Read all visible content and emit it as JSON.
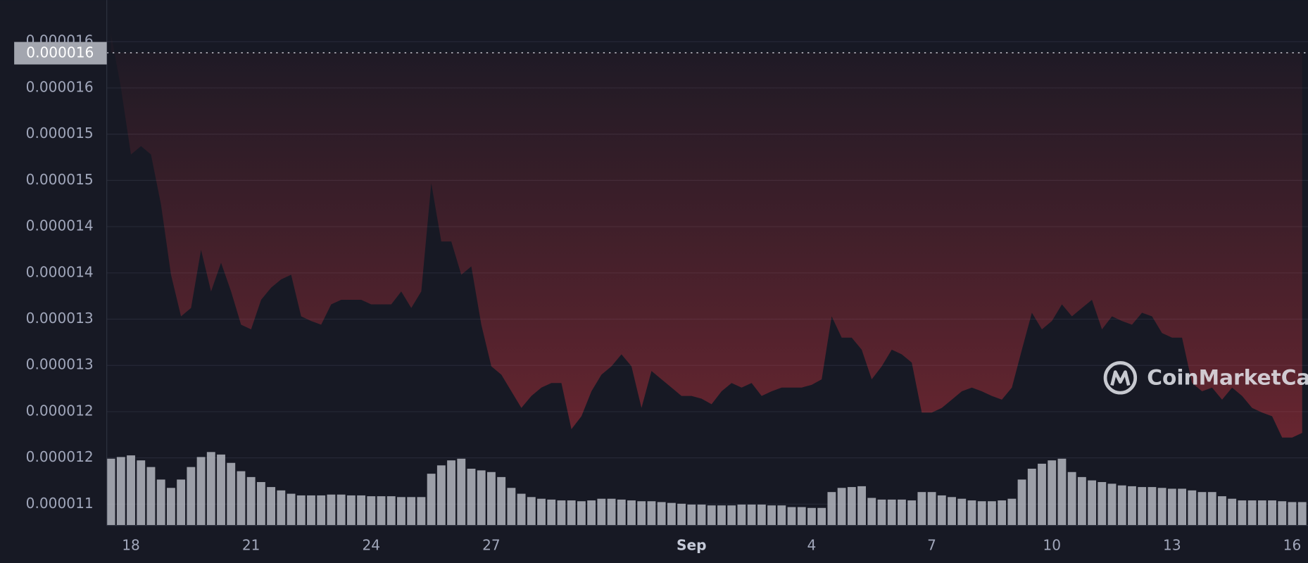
{
  "chart_data": {
    "type": "line",
    "categories": [
      null,
      null,
      "18",
      null,
      null,
      null,
      null,
      null,
      null,
      null,
      null,
      null,
      null,
      null,
      "21",
      null,
      null,
      null,
      null,
      null,
      null,
      null,
      null,
      null,
      null,
      null,
      "24",
      null,
      null,
      null,
      null,
      null,
      null,
      null,
      null,
      null,
      null,
      null,
      "27",
      null,
      null,
      null,
      null,
      null,
      null,
      null,
      null,
      null,
      null,
      null,
      null,
      null,
      null,
      null,
      null,
      null,
      null,
      null,
      "Sep",
      null,
      null,
      null,
      null,
      null,
      null,
      null,
      null,
      null,
      null,
      null,
      "4",
      null,
      null,
      null,
      null,
      null,
      null,
      null,
      null,
      null,
      null,
      null,
      "7",
      null,
      null,
      null,
      null,
      null,
      null,
      null,
      null,
      null,
      null,
      null,
      "10",
      null,
      null,
      null,
      null,
      null,
      null,
      null,
      null,
      null,
      null,
      null,
      "13",
      null,
      null,
      null,
      null,
      null,
      null,
      null,
      null,
      null,
      null,
      null,
      "16",
      null
    ],
    "values": [
      1.609e-05,
      1.55e-05,
      1.478e-05,
      1.487e-05,
      1.478e-05,
      1.424e-05,
      1.348e-05,
      1.303e-05,
      1.312e-05,
      1.375e-05,
      1.33e-05,
      1.361e-05,
      1.33e-05,
      1.294e-05,
      1.289e-05,
      1.321e-05,
      1.334e-05,
      1.343e-05,
      1.348e-05,
      1.303e-05,
      1.298e-05,
      1.294e-05,
      1.316e-05,
      1.321e-05,
      1.321e-05,
      1.321e-05,
      1.316e-05,
      1.316e-05,
      1.316e-05,
      1.33e-05,
      1.312e-05,
      1.33e-05,
      1.447e-05,
      1.384e-05,
      1.384e-05,
      1.348e-05,
      1.357e-05,
      1.294e-05,
      1.249e-05,
      1.24e-05,
      1.222e-05,
      1.204e-05,
      1.217e-05,
      1.226e-05,
      1.231e-05,
      1.231e-05,
      1.181e-05,
      1.195e-05,
      1.222e-05,
      1.24e-05,
      1.249e-05,
      1.262e-05,
      1.249e-05,
      1.204e-05,
      1.244e-05,
      1.235e-05,
      1.226e-05,
      1.217e-05,
      1.217e-05,
      1.214e-05,
      1.208e-05,
      1.222e-05,
      1.231e-05,
      1.226e-05,
      1.231e-05,
      1.217e-05,
      1.222e-05,
      1.226e-05,
      1.226e-05,
      1.226e-05,
      1.229e-05,
      1.235e-05,
      1.303e-05,
      1.28e-05,
      1.28e-05,
      1.267e-05,
      1.235e-05,
      1.249e-05,
      1.267e-05,
      1.262e-05,
      1.253e-05,
      1.199e-05,
      1.199e-05,
      1.204e-05,
      1.213e-05,
      1.222e-05,
      1.226e-05,
      1.222e-05,
      1.217e-05,
      1.213e-05,
      1.226e-05,
      1.267e-05,
      1.307e-05,
      1.289e-05,
      1.298e-05,
      1.316e-05,
      1.303e-05,
      1.312e-05,
      1.321e-05,
      1.289e-05,
      1.303e-05,
      1.298e-05,
      1.294e-05,
      1.307e-05,
      1.303e-05,
      1.285e-05,
      1.28e-05,
      1.28e-05,
      1.231e-05,
      1.222e-05,
      1.226e-05,
      1.213e-05,
      1.226e-05,
      1.217e-05,
      1.204e-05,
      1.199e-05,
      1.195e-05,
      1.172e-05,
      1.172e-05,
      1.177e-05
    ],
    "volume": [
      80,
      82,
      84,
      78,
      70,
      55,
      45,
      55,
      70,
      82,
      88,
      85,
      75,
      65,
      58,
      52,
      46,
      42,
      38,
      36,
      36,
      36,
      37,
      37,
      36,
      36,
      35,
      35,
      35,
      34,
      34,
      34,
      62,
      72,
      78,
      80,
      68,
      66,
      64,
      58,
      45,
      38,
      34,
      32,
      31,
      30,
      30,
      29,
      30,
      32,
      32,
      31,
      30,
      29,
      29,
      28,
      27,
      26,
      25,
      25,
      24,
      24,
      24,
      25,
      25,
      25,
      24,
      24,
      22,
      22,
      21,
      21,
      40,
      45,
      46,
      47,
      33,
      31,
      31,
      31,
      30,
      40,
      40,
      36,
      34,
      32,
      30,
      29,
      29,
      30,
      32,
      55,
      68,
      74,
      78,
      80,
      64,
      58,
      54,
      52,
      50,
      48,
      47,
      46,
      46,
      45,
      44,
      44,
      42,
      40,
      40,
      35,
      32,
      30,
      30,
      30,
      30,
      29,
      28,
      28
    ],
    "up_color": "#16c784",
    "down_color": "#ea3943",
    "volume_color": "#c9ccd4",
    "ylim": [
      1.077e-05,
      1.645e-05
    ],
    "yticks": [
      1.1e-05,
      {
        "value": 1.15e-05,
        "label": "0.000012"
      },
      1.2e-05,
      {
        "value": 1.25e-05,
        "label": "0.000013"
      },
      1.3e-05,
      {
        "value": 1.35e-05,
        "label": "0.000014"
      },
      1.4e-05,
      {
        "value": 1.45e-05,
        "label": "0.000015"
      },
      1.5e-05,
      {
        "value": 1.55e-05,
        "label": "0.000016"
      },
      1.6e-05
    ],
    "grid": true,
    "price_tag": {
      "value": 1.588e-05,
      "label": "0.000016"
    },
    "watermark": "CoinMarketCap"
  }
}
